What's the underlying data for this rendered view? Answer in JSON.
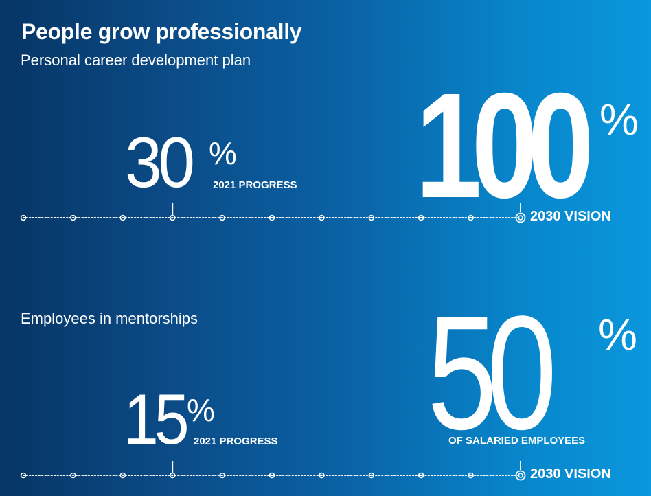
{
  "title": "People grow professionally",
  "metric1": {
    "label": "Personal career development plan",
    "progress_value": "30",
    "progress_symbol": "%",
    "progress_label": "2021 PROGRESS",
    "vision_value": "100",
    "vision_symbol": "%",
    "vision_label": "2030 VISION",
    "progress_fraction": 0.3
  },
  "metric2": {
    "label": "Employees in mentorships",
    "progress_value": "15",
    "progress_symbol": "%",
    "progress_label": "2021 PROGRESS",
    "vision_value": "50",
    "vision_symbol": "%",
    "vision_note": "OF SALARIED EMPLOYEES",
    "vision_label": "2030 VISION",
    "progress_fraction": 0.3
  },
  "colors": {
    "gradient_start": "#063565",
    "gradient_end": "#0a97dc",
    "text": "#ffffff"
  }
}
